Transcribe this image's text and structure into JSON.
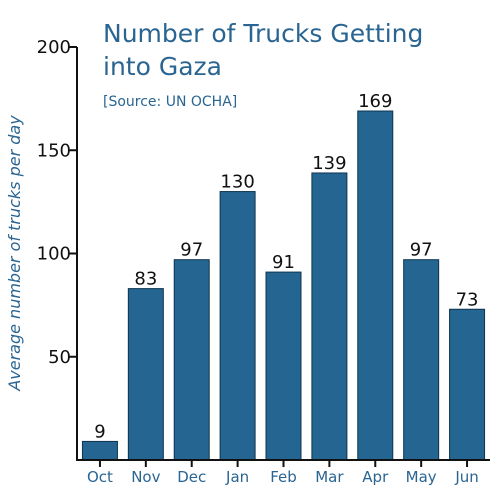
{
  "chart_data": {
    "type": "bar",
    "title_lines": [
      "Number of Trucks Getting",
      "into Gaza"
    ],
    "subtitle": "[Source: UN OCHA]",
    "xlabel": "",
    "ylabel": "Average number of trucks per day",
    "categories": [
      "Oct",
      "Nov",
      "Dec",
      "Jan",
      "Feb",
      "Mar",
      "Apr",
      "May",
      "Jun"
    ],
    "values": [
      9,
      83,
      97,
      130,
      91,
      139,
      169,
      97,
      73
    ],
    "ylim": [
      0,
      200
    ],
    "yticks": [
      50,
      100,
      150,
      200
    ],
    "grid": false,
    "legend": "none",
    "bar_color": "#246591",
    "text_color": "#2a6592"
  }
}
